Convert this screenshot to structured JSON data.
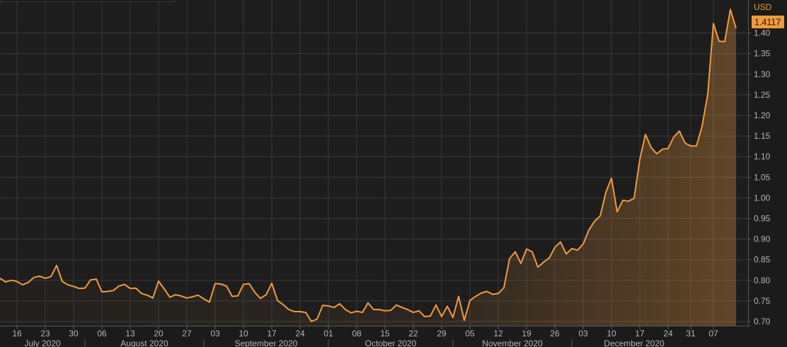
{
  "chart_data": {
    "type": "area",
    "title": "",
    "xlabel": "",
    "ylabel": "",
    "unit_label": "USD",
    "last_value_label": "1.4117",
    "colors": {
      "line": "#f09a3e",
      "background": "#1b1b1b",
      "grid": "#3a3a3a",
      "tag": "#f09a3e"
    },
    "grid": true,
    "legend": "none",
    "y_axis_position": "right",
    "ylim": [
      0.7,
      1.45
    ],
    "yticks": [
      "0.70",
      "0.75",
      "0.80",
      "0.85",
      "0.90",
      "0.95",
      "1.00",
      "1.05",
      "1.10",
      "1.15",
      "1.20",
      "1.25",
      "1.30",
      "1.35",
      "1.40"
    ],
    "xticks": [
      {
        "date": "2020-07-16",
        "label": "16"
      },
      {
        "date": "2020-07-23",
        "label": "23"
      },
      {
        "date": "2020-07-30",
        "label": "30"
      },
      {
        "date": "2020-08-06",
        "label": "06"
      },
      {
        "date": "2020-08-13",
        "label": "13"
      },
      {
        "date": "2020-08-20",
        "label": "20"
      },
      {
        "date": "2020-08-27",
        "label": "27"
      },
      {
        "date": "2020-09-03",
        "label": "03"
      },
      {
        "date": "2020-09-10",
        "label": "10"
      },
      {
        "date": "2020-09-17",
        "label": "17"
      },
      {
        "date": "2020-09-24",
        "label": "24"
      },
      {
        "date": "2020-10-01",
        "label": "01"
      },
      {
        "date": "2020-10-08",
        "label": "08"
      },
      {
        "date": "2020-10-15",
        "label": "15"
      },
      {
        "date": "2020-10-22",
        "label": "22"
      },
      {
        "date": "2020-10-29",
        "label": "29"
      },
      {
        "date": "2020-11-05",
        "label": "05"
      },
      {
        "date": "2020-11-12",
        "label": "12"
      },
      {
        "date": "2020-11-19",
        "label": "19"
      },
      {
        "date": "2020-11-26",
        "label": "26"
      },
      {
        "date": "2020-12-03",
        "label": "03"
      },
      {
        "date": "2020-12-10",
        "label": "10"
      },
      {
        "date": "2020-12-17",
        "label": "17"
      },
      {
        "date": "2020-12-24",
        "label": "24"
      },
      {
        "date": "2020-12-31",
        "label": "31"
      },
      {
        "date": "2021-01-07",
        "label": "07"
      }
    ],
    "months": [
      {
        "label": "July 2020",
        "start": "2020-07-13",
        "end": "2020-08-03"
      },
      {
        "label": "August 2020",
        "start": "2020-08-03",
        "end": "2020-09-01"
      },
      {
        "label": "September 2020",
        "start": "2020-09-01",
        "end": "2020-10-01"
      },
      {
        "label": "October 2020",
        "start": "2020-10-01",
        "end": "2020-11-02"
      },
      {
        "label": "November 2020",
        "start": "2020-11-02",
        "end": "2020-12-01"
      },
      {
        "label": "December 2020",
        "start": "2020-12-01",
        "end": "2021-01-04"
      }
    ],
    "x": [
      "2020-07-13",
      "2020-07-14",
      "2020-07-15",
      "2020-07-16",
      "2020-07-17",
      "2020-07-20",
      "2020-07-21",
      "2020-07-22",
      "2020-07-23",
      "2020-07-24",
      "2020-07-27",
      "2020-07-28",
      "2020-07-29",
      "2020-07-30",
      "2020-07-31",
      "2020-08-03",
      "2020-08-04",
      "2020-08-05",
      "2020-08-06",
      "2020-08-07",
      "2020-08-10",
      "2020-08-11",
      "2020-08-12",
      "2020-08-13",
      "2020-08-14",
      "2020-08-17",
      "2020-08-18",
      "2020-08-19",
      "2020-08-20",
      "2020-08-21",
      "2020-08-24",
      "2020-08-25",
      "2020-08-26",
      "2020-08-27",
      "2020-08-28",
      "2020-08-31",
      "2020-09-01",
      "2020-09-02",
      "2020-09-03",
      "2020-09-04",
      "2020-09-07",
      "2020-09-08",
      "2020-09-09",
      "2020-09-10",
      "2020-09-11",
      "2020-09-14",
      "2020-09-15",
      "2020-09-16",
      "2020-09-17",
      "2020-09-18",
      "2020-09-21",
      "2020-09-22",
      "2020-09-23",
      "2020-09-24",
      "2020-09-25",
      "2020-09-28",
      "2020-09-29",
      "2020-09-30",
      "2020-10-01",
      "2020-10-02",
      "2020-10-05",
      "2020-10-06",
      "2020-10-07",
      "2020-10-08",
      "2020-10-09",
      "2020-10-12",
      "2020-10-13",
      "2020-10-14",
      "2020-10-15",
      "2020-10-16",
      "2020-10-19",
      "2020-10-20",
      "2020-10-21",
      "2020-10-22",
      "2020-10-23",
      "2020-10-26",
      "2020-10-27",
      "2020-10-28",
      "2020-10-29",
      "2020-10-30",
      "2020-11-02",
      "2020-11-03",
      "2020-11-04",
      "2020-11-05",
      "2020-11-06",
      "2020-11-09",
      "2020-11-10",
      "2020-11-11",
      "2020-11-12",
      "2020-11-13",
      "2020-11-16",
      "2020-11-17",
      "2020-11-18",
      "2020-11-19",
      "2020-11-20",
      "2020-11-23",
      "2020-11-24",
      "2020-11-25",
      "2020-11-26",
      "2020-11-27",
      "2020-11-30",
      "2020-12-01",
      "2020-12-02",
      "2020-12-03",
      "2020-12-04",
      "2020-12-07",
      "2020-12-08",
      "2020-12-09",
      "2020-12-10",
      "2020-12-11",
      "2020-12-14",
      "2020-12-15",
      "2020-12-16",
      "2020-12-17",
      "2020-12-18",
      "2020-12-21",
      "2020-12-22",
      "2020-12-23",
      "2020-12-24",
      "2020-12-28",
      "2020-12-29",
      "2020-12-30",
      "2020-12-31",
      "2021-01-04",
      "2021-01-05",
      "2021-01-06",
      "2021-01-07",
      "2021-01-08",
      "2021-01-11",
      "2021-01-12",
      "2021-01-13"
    ],
    "values": [
      0.805,
      0.796,
      0.8,
      0.797,
      0.789,
      0.795,
      0.807,
      0.81,
      0.805,
      0.809,
      0.836,
      0.797,
      0.789,
      0.785,
      0.78,
      0.781,
      0.801,
      0.803,
      0.772,
      0.773,
      0.775,
      0.786,
      0.79,
      0.78,
      0.781,
      0.768,
      0.764,
      0.757,
      0.798,
      0.779,
      0.759,
      0.765,
      0.762,
      0.757,
      0.76,
      0.764,
      0.755,
      0.747,
      0.792,
      0.791,
      0.786,
      0.761,
      0.762,
      0.79,
      0.792,
      0.771,
      0.756,
      0.765,
      0.793,
      0.751,
      0.741,
      0.729,
      0.724,
      0.724,
      0.722,
      0.7,
      0.706,
      0.739,
      0.738,
      0.734,
      0.743,
      0.729,
      0.721,
      0.725,
      0.722,
      0.745,
      0.729,
      0.729,
      0.726,
      0.727,
      0.74,
      0.734,
      0.729,
      0.722,
      0.726,
      0.712,
      0.713,
      0.74,
      0.712,
      0.737,
      0.71,
      0.761,
      0.703,
      0.751,
      0.761,
      0.769,
      0.773,
      0.766,
      0.768,
      0.782,
      0.853,
      0.869,
      0.841,
      0.876,
      0.869,
      0.832,
      0.844,
      0.854,
      0.88,
      0.893,
      0.864,
      0.877,
      0.873,
      0.888,
      0.922,
      0.943,
      0.956,
      1.013,
      1.048,
      0.966,
      0.994,
      0.992,
      0.999,
      1.093,
      1.154,
      1.122,
      1.107,
      1.118,
      1.12,
      1.148,
      1.162,
      1.133,
      1.126,
      1.126,
      1.174,
      1.251,
      1.423,
      1.38,
      1.379,
      1.457,
      1.4117
    ]
  }
}
